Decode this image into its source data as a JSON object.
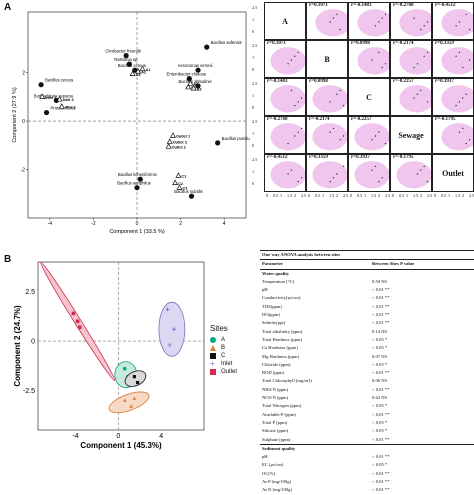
{
  "figure_a": {
    "panel_letter": "A",
    "xlabel": "Component 1 (33.5 %)",
    "ylabel": "Component 2 (27.9 %)",
    "taxa": [
      {
        "name": "Citrobacter freundii",
        "c1": -0.5,
        "c2": 2.7
      },
      {
        "name": "Bacillus safensis",
        "c1": 3.2,
        "c2": 3.05
      },
      {
        "name": "Ralstonia sp.",
        "c1": -0.35,
        "c2": 2.35
      },
      {
        "name": "Bacillus cereus",
        "c1": -0.1,
        "c2": 2.1
      },
      {
        "name": "Aeromonas veronii",
        "c1": 2.8,
        "c2": 2.1
      },
      {
        "name": "Enterobacter cloacae",
        "c1": 2.4,
        "c2": 1.75
      },
      {
        "name": "Bacillus altitudinis",
        "c1": 2.8,
        "c2": 1.45
      },
      {
        "name": "Bacillus cereus",
        "c1": -4.4,
        "c2": 1.5
      },
      {
        "name": "Burkholderia cepacia",
        "c1": -3.7,
        "c2": 0.85
      },
      {
        "name": "Proteus flexa",
        "c1": -4.15,
        "c2": 0.35
      },
      {
        "name": "Bacillus pumilus",
        "c1": 3.7,
        "c2": -0.9
      },
      {
        "name": "Bacillus licheniformis",
        "c1": 0.15,
        "c2": -2.4
      },
      {
        "name": "Bacillus aeriphilus",
        "c1": 0.0,
        "c2": -2.75
      },
      {
        "name": "Bacillus subtilis",
        "c1": 2.5,
        "c2": -3.1
      }
    ],
    "sites": [
      {
        "name": "A1",
        "c1": 0.25,
        "c2": 2.15
      },
      {
        "name": "A2",
        "c1": 0.05,
        "c2": 2.05
      },
      {
        "name": "A3",
        "c1": -0.2,
        "c2": 1.95
      },
      {
        "name": "B1",
        "c1": 2.35,
        "c2": 1.4
      },
      {
        "name": "B2",
        "c1": 2.45,
        "c2": 1.55
      },
      {
        "name": "B3",
        "c1": 2.6,
        "c2": 1.35
      },
      {
        "name": "Inlet 1",
        "c1": -4.35,
        "c2": 1.0
      },
      {
        "name": "Inlet 2",
        "c1": -3.45,
        "c2": 0.6
      },
      {
        "name": "Inlet 3",
        "c1": -3.55,
        "c2": 0.9
      },
      {
        "name": "Outlet 1",
        "c1": 1.65,
        "c2": -0.6
      },
      {
        "name": "Outlet 2",
        "c1": 1.45,
        "c2": -1.05
      },
      {
        "name": "Outlet 3",
        "c1": 1.5,
        "c2": -0.85
      },
      {
        "name": "C1",
        "c1": 1.9,
        "c2": -2.25
      },
      {
        "name": "C2",
        "c1": 1.75,
        "c2": -2.55
      },
      {
        "name": "C3",
        "c1": 1.95,
        "c2": -2.75
      }
    ],
    "xticks": [
      -4,
      -2,
      0,
      2,
      4
    ],
    "yticks": [
      -2,
      0,
      2
    ]
  },
  "matrix": {
    "labels": [
      "A",
      "B",
      "C",
      "Sewage",
      "Outlet"
    ],
    "r_values": [
      [
        "",
        "r=0.1071",
        "r=-0.1483",
        "r=-0.2760",
        "r=-0.4512"
      ],
      [
        "r=0.1071",
        "",
        "r=0.0998",
        "r=-0.2174",
        "r=0.3359"
      ],
      [
        "r=-0.1483",
        "r=0.0998",
        "",
        "r=-0.2257",
        "r=0.3937"
      ],
      [
        "r=-0.2760",
        "r=-0.2174",
        "r=-0.2257",
        "",
        "r=-0.1795"
      ],
      [
        "r=-0.4512",
        "r=0.3359",
        "r=0.3937",
        "r=-0.1795",
        ""
      ]
    ],
    "axis_ticks": [
      "0",
      "0.5",
      "1",
      "1.5",
      "2",
      "2.5"
    ],
    "shade_color": "#f1c6ee"
  },
  "figure_b": {
    "panel_letter": "B",
    "xlabel": "Component 1 (45.3%)",
    "ylabel": "Component 2 (24.7%)",
    "xticks": [
      -4,
      0,
      4
    ],
    "yticks": [
      -2.5,
      0,
      2.5
    ],
    "legend_title": "Sites",
    "legend": [
      {
        "name": "A",
        "color": "#00a884",
        "shape": "dot"
      },
      {
        "name": "B",
        "color": "#e07b39",
        "shape": "tri"
      },
      {
        "name": "C",
        "color": "#111111",
        "shape": "sq"
      },
      {
        "name": "Inlet",
        "color": "#7a6fc4",
        "shape": "plus"
      },
      {
        "name": "Outlet",
        "color": "#d02a55",
        "shape": "box"
      }
    ]
  },
  "anova": {
    "title": "One-way ANOVA analysis between sites",
    "col1": "Parameter",
    "col2": "Between Sites P value",
    "section1": "Water quality",
    "water_rows": [
      [
        "Temperature (°C)",
        "0.50 NS"
      ],
      [
        "pH",
        "< 0.01 **"
      ],
      [
        "Conductivity(µs/cm)",
        "< 0.01 **"
      ],
      [
        "TDS(ppm)",
        "< 0.01 **"
      ],
      [
        "DO(ppm)",
        "< 0.01 **"
      ],
      [
        "Salinity(ppt)",
        "< 0.01 **"
      ],
      [
        "Total alkalinity (ppm)",
        "0.14 NS"
      ],
      [
        "Total Hardness (ppm)",
        "< 0.05 *"
      ],
      [
        "Ca Hardness (ppm)",
        "< 0.05 *"
      ],
      [
        "Mg Hardness (ppm)",
        "0.07 NS"
      ],
      [
        "Chloride (ppm)",
        "< 0.05 *"
      ],
      [
        "BOD (ppm)",
        "< 0.01 **"
      ],
      [
        "Total Chlorophyll (mg/m3)",
        "0.06 NS"
      ],
      [
        "NH4-N (ppm)",
        "< 0.01 **"
      ],
      [
        "NO3-N (ppm)",
        "0.62 NS"
      ],
      [
        "Total Nitrogen (ppm)",
        "< 0.05 *"
      ],
      [
        "Available-P (ppm)",
        "< 0.01 **"
      ],
      [
        "Total P (ppm)",
        "< 0.05 *"
      ],
      [
        "Silicate (ppm)",
        "< 0.05 *"
      ],
      [
        "Sulphate (ppm)",
        "< 0.01 **"
      ]
    ],
    "section2": "Sediment quality",
    "sediment_rows": [
      [
        "pH",
        "< 0.01 **"
      ],
      [
        "EC (µs/cm)",
        "< 0.05 *"
      ],
      [
        "OC(%)",
        "< 0.01 **"
      ],
      [
        "Av.P (mg/100g)",
        "< 0.01 **"
      ],
      [
        "Av.N (mg/100g)",
        "< 0.01 **"
      ]
    ]
  }
}
